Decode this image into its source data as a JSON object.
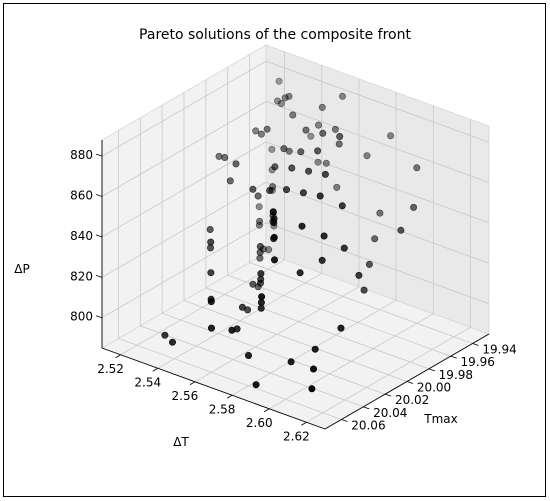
{
  "chart_data": {
    "type": "scatter3d",
    "title": "Pareto solutions of the composite front",
    "xlabel": "ΔT",
    "ylabel": "Tmax",
    "zlabel": "ΔP",
    "x_ticks": [
      "2.52",
      "2.54",
      "2.56",
      "2.58",
      "2.60",
      "2.62"
    ],
    "y_ticks": [
      "19.94",
      "19.96",
      "19.98",
      "20.00",
      "20.02",
      "20.04",
      "20.06"
    ],
    "z_ticks": [
      "800",
      "820",
      "840",
      "860",
      "880"
    ],
    "xlim": [
      2.51,
      2.63
    ],
    "ylim": [
      20.075,
      19.925
    ],
    "zlim": [
      785,
      888
    ],
    "grid": true,
    "point_color": "#000000",
    "points": [
      [
        2.525,
        19.94,
        870
      ],
      [
        2.53,
        19.945,
        872
      ],
      [
        2.535,
        19.95,
        878
      ],
      [
        2.54,
        19.955,
        882
      ],
      [
        2.545,
        19.96,
        876
      ],
      [
        2.55,
        19.945,
        868
      ],
      [
        2.555,
        19.95,
        880
      ],
      [
        2.56,
        19.94,
        884
      ],
      [
        2.565,
        19.955,
        874
      ],
      [
        2.57,
        19.96,
        870
      ],
      [
        2.528,
        19.965,
        864
      ],
      [
        2.534,
        19.97,
        866
      ],
      [
        2.54,
        19.975,
        872
      ],
      [
        2.546,
        19.965,
        860
      ],
      [
        2.552,
        19.98,
        868
      ],
      [
        2.558,
        19.97,
        876
      ],
      [
        2.564,
        19.985,
        872
      ],
      [
        2.57,
        19.975,
        880
      ],
      [
        2.576,
        19.99,
        878
      ],
      [
        2.582,
        19.98,
        884
      ],
      [
        2.52,
        19.985,
        855
      ],
      [
        2.526,
        19.99,
        858
      ],
      [
        2.532,
        19.995,
        850
      ],
      [
        2.538,
        20.0,
        862
      ],
      [
        2.544,
        19.99,
        845
      ],
      [
        2.55,
        20.005,
        855
      ],
      [
        2.556,
        19.995,
        865
      ],
      [
        2.562,
        20.01,
        860
      ],
      [
        2.568,
        20.0,
        870
      ],
      [
        2.574,
        20.015,
        866
      ],
      [
        2.58,
        20.005,
        874
      ],
      [
        2.586,
        20.02,
        870
      ],
      [
        2.592,
        20.01,
        878
      ],
      [
        2.598,
        20.025,
        874
      ],
      [
        2.604,
        20.015,
        868
      ],
      [
        2.522,
        19.94,
        845
      ],
      [
        2.528,
        19.95,
        840
      ],
      [
        2.534,
        19.96,
        835
      ],
      [
        2.54,
        19.97,
        842
      ],
      [
        2.546,
        19.98,
        830
      ],
      [
        2.552,
        19.99,
        838
      ],
      [
        2.558,
        20.0,
        845
      ],
      [
        2.564,
        20.01,
        850
      ],
      [
        2.57,
        20.02,
        842
      ],
      [
        2.576,
        20.03,
        855
      ],
      [
        2.582,
        20.04,
        862
      ],
      [
        2.588,
        20.05,
        858
      ],
      [
        2.594,
        20.06,
        852
      ],
      [
        2.6,
        20.045,
        866
      ],
      [
        2.606,
        20.035,
        860
      ],
      [
        2.524,
        19.955,
        822
      ],
      [
        2.53,
        19.965,
        818
      ],
      [
        2.536,
        19.975,
        825
      ],
      [
        2.542,
        19.985,
        812
      ],
      [
        2.548,
        19.995,
        820
      ],
      [
        2.554,
        20.005,
        828
      ],
      [
        2.56,
        20.015,
        815
      ],
      [
        2.566,
        20.025,
        822
      ],
      [
        2.572,
        20.035,
        830
      ],
      [
        2.578,
        20.045,
        818
      ],
      [
        2.584,
        20.055,
        826
      ],
      [
        2.59,
        20.065,
        834
      ],
      [
        2.596,
        20.04,
        840
      ],
      [
        2.602,
        20.03,
        845
      ],
      [
        2.608,
        20.02,
        850
      ],
      [
        2.526,
        19.945,
        810
      ],
      [
        2.532,
        19.96,
        805
      ],
      [
        2.538,
        19.975,
        812
      ],
      [
        2.544,
        19.99,
        800
      ],
      [
        2.55,
        20.005,
        808
      ],
      [
        2.556,
        20.02,
        802
      ],
      [
        2.562,
        20.035,
        810
      ],
      [
        2.568,
        20.05,
        806
      ],
      [
        2.574,
        20.065,
        812
      ],
      [
        2.58,
        20.06,
        800
      ],
      [
        2.586,
        19.95,
        838
      ],
      [
        2.592,
        19.965,
        832
      ],
      [
        2.598,
        19.98,
        826
      ],
      [
        2.604,
        19.995,
        820
      ],
      [
        2.61,
        20.01,
        834
      ],
      [
        2.54,
        19.935,
        856
      ],
      [
        2.548,
        19.942,
        848
      ],
      [
        2.556,
        19.948,
        852
      ],
      [
        2.564,
        19.952,
        844
      ],
      [
        2.572,
        19.938,
        858
      ],
      [
        2.53,
        20.01,
        830
      ],
      [
        2.536,
        20.02,
        826
      ],
      [
        2.542,
        20.03,
        834
      ],
      [
        2.548,
        20.04,
        824
      ],
      [
        2.554,
        20.05,
        816
      ],
      [
        2.56,
        20.06,
        820
      ],
      [
        2.566,
        20.07,
        812
      ],
      [
        2.61,
        20.05,
        810
      ],
      [
        2.615,
        20.06,
        805
      ],
      [
        2.62,
        20.07,
        800
      ],
      [
        2.535,
        20.06,
        795
      ],
      [
        2.545,
        20.07,
        798
      ],
      [
        2.59,
        20.07,
        792
      ],
      [
        2.6,
        20.055,
        802
      ],
      [
        2.618,
        20.04,
        820
      ],
      [
        2.52,
        19.93,
        875
      ],
      [
        2.58,
        19.93,
        868
      ],
      [
        2.6,
        19.94,
        862
      ],
      [
        2.61,
        19.96,
        852
      ],
      [
        2.612,
        19.975,
        846
      ]
    ]
  }
}
